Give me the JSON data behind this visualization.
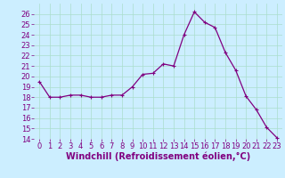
{
  "x": [
    0,
    1,
    2,
    3,
    4,
    5,
    6,
    7,
    8,
    9,
    10,
    11,
    12,
    13,
    14,
    15,
    16,
    17,
    18,
    19,
    20,
    21,
    22,
    23
  ],
  "y": [
    19.5,
    18.0,
    18.0,
    18.2,
    18.2,
    18.0,
    18.0,
    18.2,
    18.2,
    19.0,
    20.2,
    20.3,
    21.2,
    21.0,
    24.0,
    26.2,
    25.2,
    24.7,
    22.3,
    20.6,
    18.1,
    16.8,
    15.1,
    14.1
  ],
  "line_color": "#800080",
  "marker": "+",
  "marker_color": "#800080",
  "bg_color": "#cceeff",
  "grid_color": "#aaddcc",
  "xlabel": "Windchill (Refroidissement éolien,°C)",
  "ylim": [
    14,
    27
  ],
  "yticks": [
    14,
    15,
    16,
    17,
    18,
    19,
    20,
    21,
    22,
    23,
    24,
    25,
    26
  ],
  "xticks": [
    0,
    1,
    2,
    3,
    4,
    5,
    6,
    7,
    8,
    9,
    10,
    11,
    12,
    13,
    14,
    15,
    16,
    17,
    18,
    19,
    20,
    21,
    22,
    23
  ],
  "xlabel_fontsize": 7,
  "tick_fontsize": 6,
  "linewidth": 0.9,
  "markersize": 3
}
